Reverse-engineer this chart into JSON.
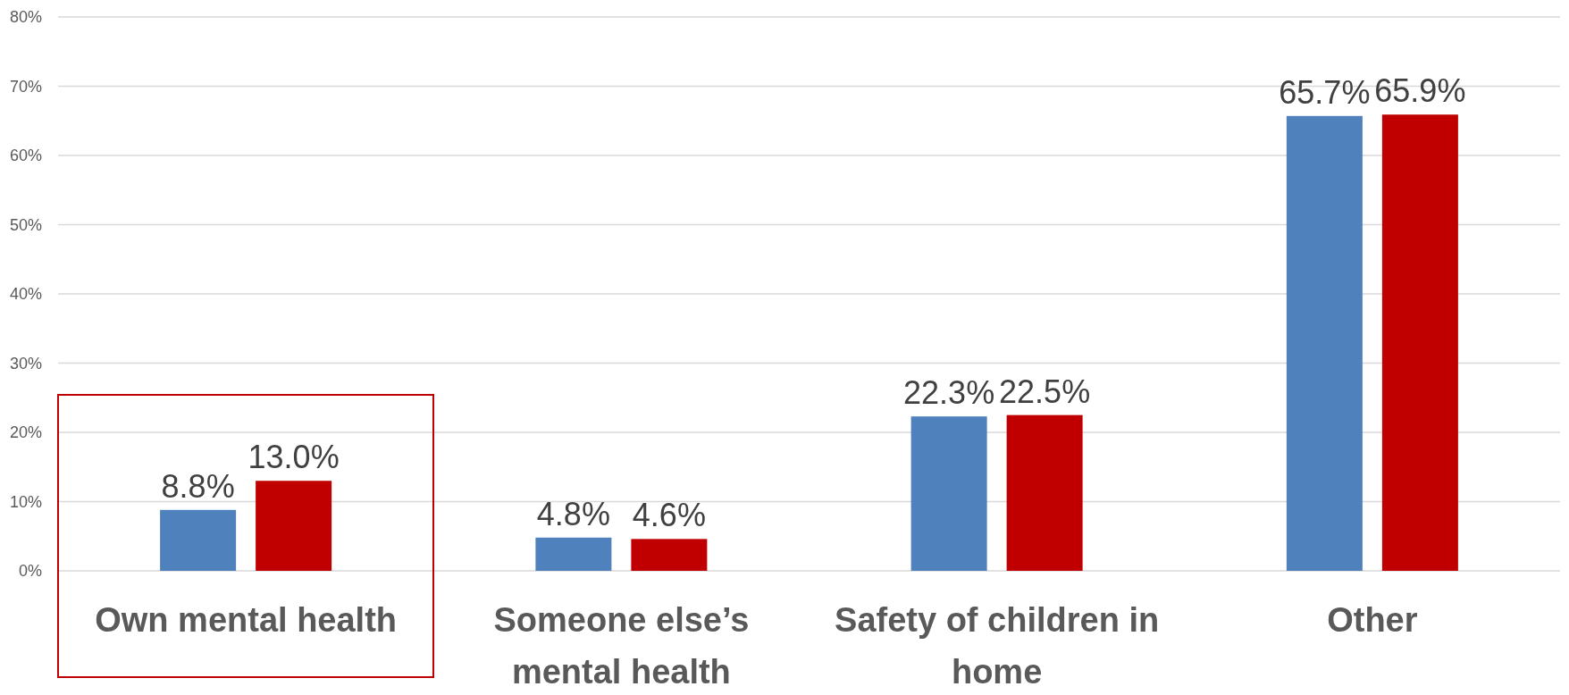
{
  "chart_data": {
    "type": "bar",
    "categories": [
      "Own mental health",
      "Someone else’s mental health",
      "Safety of children in home",
      "Other"
    ],
    "series": [
      {
        "color": "#4f81bd",
        "values": [
          8.8,
          4.8,
          22.3,
          65.7
        ]
      },
      {
        "color": "#c00000",
        "values": [
          13.0,
          4.6,
          22.5,
          65.9
        ]
      }
    ],
    "ylim": [
      0,
      80
    ],
    "yticks": [
      {
        "value": 0,
        "label": "0%"
      },
      {
        "value": 10,
        "label": "10%"
      },
      {
        "value": 20,
        "label": "20%"
      },
      {
        "value": 30,
        "label": "30%"
      },
      {
        "value": 40,
        "label": "40%"
      },
      {
        "value": 50,
        "label": "50%"
      },
      {
        "value": 60,
        "label": "60%"
      },
      {
        "value": 70,
        "label": "70%"
      },
      {
        "value": 80,
        "label": "80%"
      }
    ],
    "grid": true,
    "value_labels": [
      [
        "8.8%",
        "4.8%",
        "22.3%",
        "65.7%"
      ],
      [
        "13.0%",
        "4.6%",
        "22.5%",
        "65.9%"
      ]
    ]
  }
}
